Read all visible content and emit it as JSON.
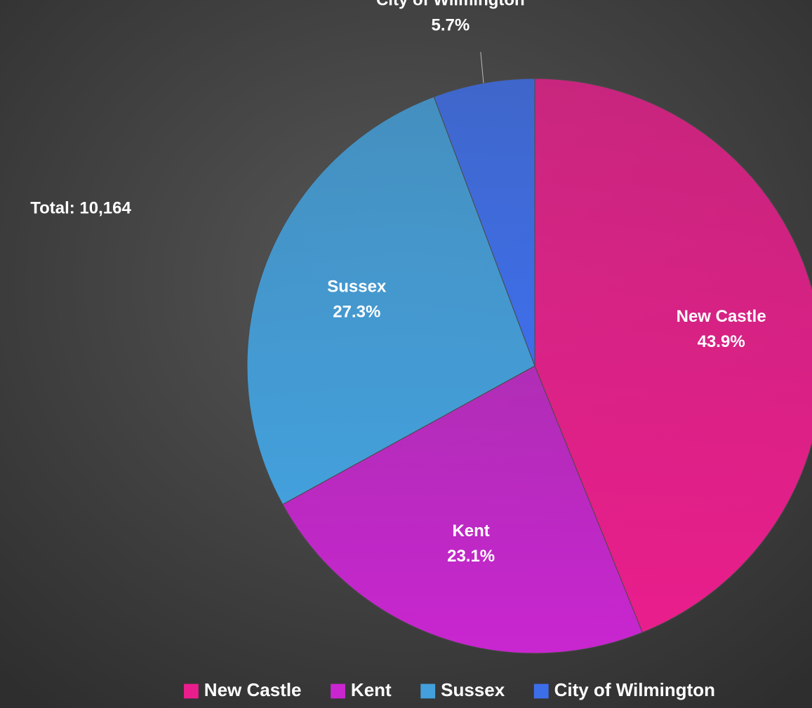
{
  "chart_data": {
    "type": "pie",
    "categories": [
      "New Castle",
      "Kent",
      "Sussex",
      "City of Wilmington"
    ],
    "values": [
      43.9,
      23.1,
      27.3,
      5.7
    ],
    "value_labels": [
      "43.9%",
      "23.1%",
      "27.3%",
      "5.7%"
    ],
    "colors": [
      "#e91e8c",
      "#c926d0",
      "#43a0dc",
      "#3d6eea"
    ],
    "annotation": "Total: 10,164",
    "legend": "bottom"
  }
}
